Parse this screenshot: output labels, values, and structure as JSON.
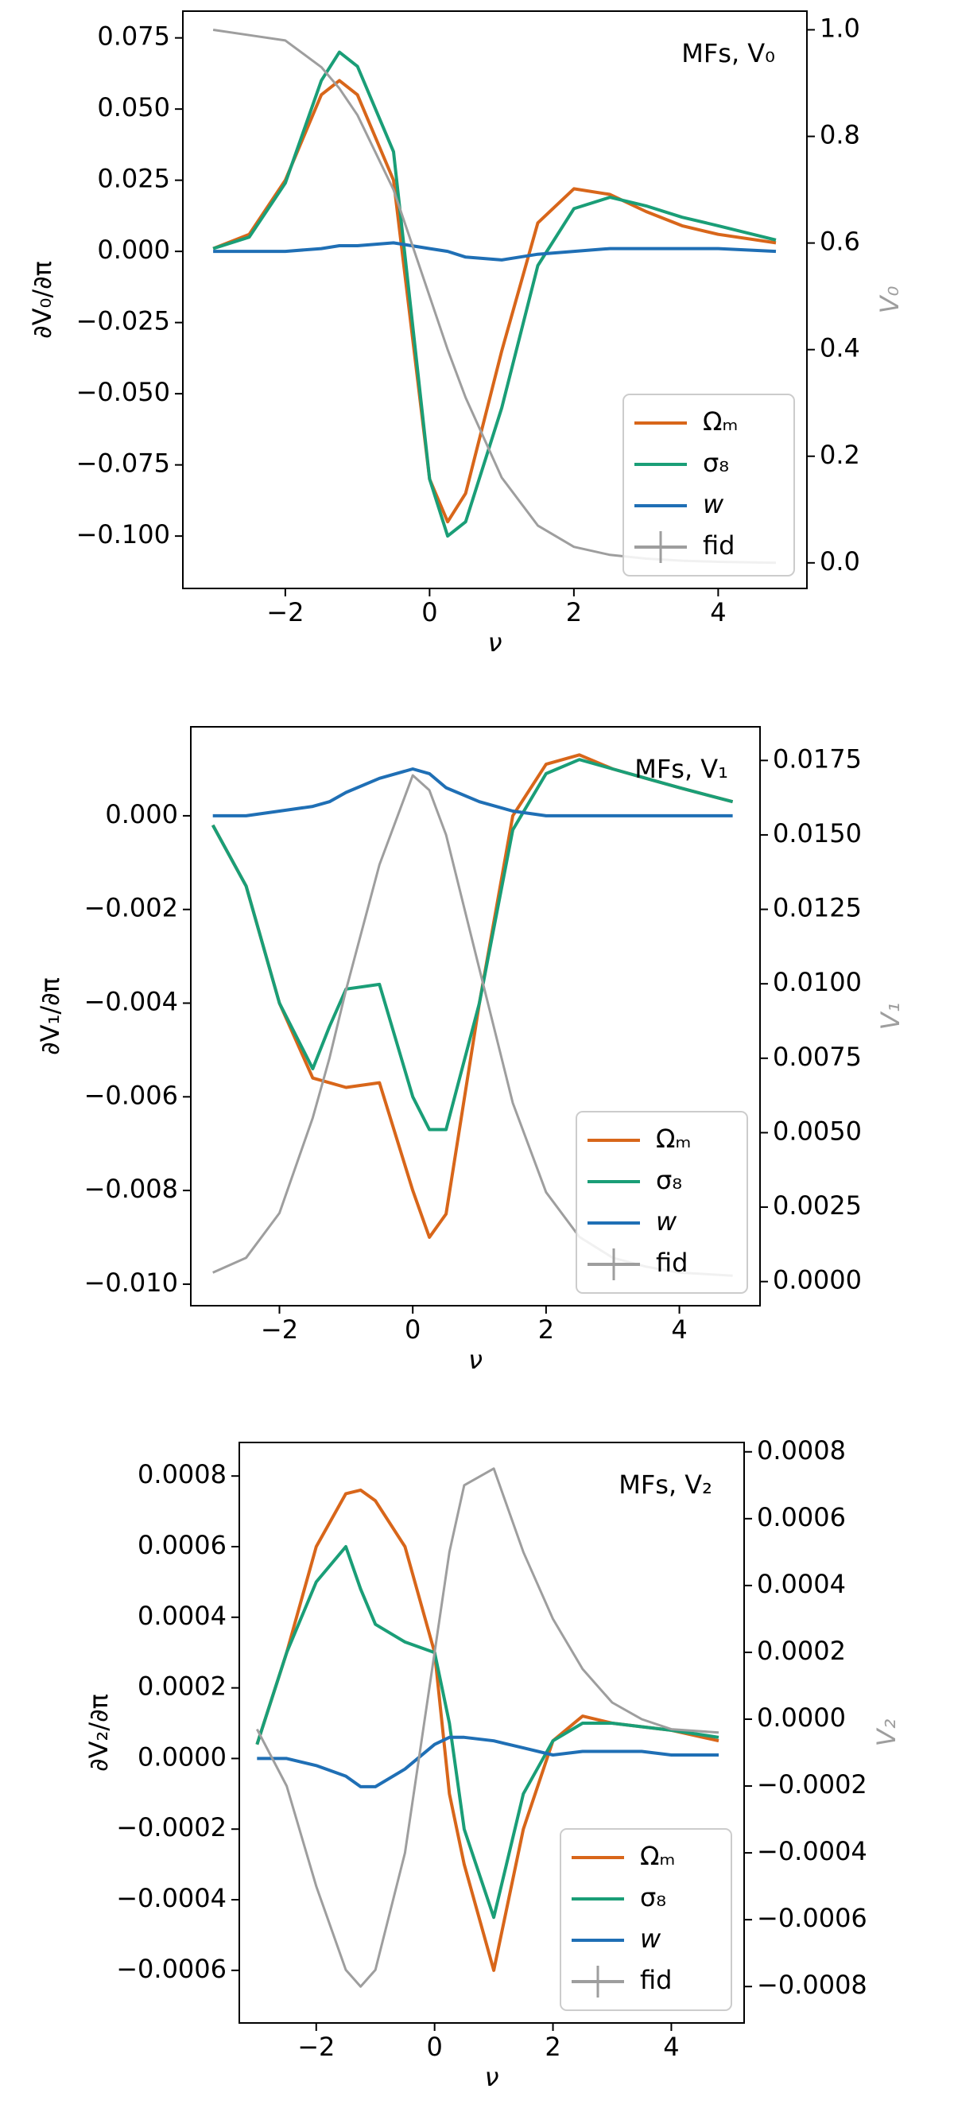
{
  "chart_data": [
    {
      "type": "line",
      "annotation": "MFs, V₀",
      "xlabel": "ν",
      "ylabel": "∂V₀/∂π",
      "y2label": "V₀",
      "legend": "lower right",
      "x": [
        -3,
        -2.5,
        -2,
        -1.5,
        -1.25,
        -1,
        -0.5,
        0,
        0.25,
        0.5,
        1,
        1.5,
        2,
        2.5,
        3,
        3.5,
        4,
        4.8
      ],
      "series": [
        {
          "name": "Ωₘ",
          "color": "#d8661a",
          "values": [
            0.001,
            0.006,
            0.025,
            0.055,
            0.06,
            0.055,
            0.025,
            -0.08,
            -0.095,
            -0.085,
            -0.035,
            0.01,
            0.022,
            0.02,
            0.014,
            0.009,
            0.006,
            0.003
          ]
        },
        {
          "name": "σ₈",
          "color": "#1a9e77",
          "values": [
            0.001,
            0.005,
            0.024,
            0.06,
            0.07,
            0.065,
            0.035,
            -0.08,
            -0.1,
            -0.095,
            -0.055,
            -0.005,
            0.015,
            0.019,
            0.016,
            0.012,
            0.009,
            0.004
          ]
        },
        {
          "name": "w",
          "color": "#1f6fb5",
          "values": [
            0,
            0,
            0,
            0.001,
            0.002,
            0.002,
            0.003,
            0.001,
            0,
            -0.002,
            -0.003,
            -0.001,
            0,
            0.001,
            0.001,
            0.001,
            0.001,
            0
          ]
        },
        {
          "name": "fid",
          "color": "#9e9e9e",
          "axis": "y2",
          "values": [
            1.0,
            0.99,
            0.98,
            0.93,
            0.89,
            0.84,
            0.7,
            0.5,
            0.4,
            0.31,
            0.16,
            0.07,
            0.03,
            0.015,
            0.008,
            0.004,
            0.002,
            0.0
          ]
        }
      ],
      "xlim": [
        -3.42,
        5.23
      ],
      "xticks": [
        {
          "value": -2,
          "label": "−2"
        },
        0,
        2,
        4
      ],
      "ylim": [
        -0.1184,
        0.0844
      ],
      "yticks": [
        {
          "value": -0.1,
          "label": "−0.100"
        },
        {
          "value": -0.075,
          "label": "−0.075"
        },
        {
          "value": -0.05,
          "label": "−0.050"
        },
        {
          "value": -0.025,
          "label": "−0.025"
        },
        {
          "value": 0,
          "label": "0.000"
        },
        {
          "value": 0.025,
          "label": "0.025"
        },
        {
          "value": 0.05,
          "label": "0.050"
        },
        {
          "value": 0.075,
          "label": "0.075"
        }
      ],
      "y2lim": [
        -0.048,
        1.035
      ],
      "y2ticks": [
        {
          "value": 0,
          "label": "0.0"
        },
        0.2,
        0.4,
        0.6,
        0.8,
        {
          "value": 1,
          "label": "1.0"
        }
      ]
    },
    {
      "type": "line",
      "annotation": "MFs, V₁",
      "xlabel": "ν",
      "ylabel": "∂V₁/∂π",
      "y2label": "V₁",
      "legend": "lower right",
      "x": [
        -3,
        -2.5,
        -2,
        -1.5,
        -1.25,
        -1,
        -0.5,
        0,
        0.25,
        0.5,
        1,
        1.5,
        2,
        2.5,
        3,
        3.5,
        4,
        4.8
      ],
      "series": [
        {
          "name": "Ωₘ",
          "color": "#d8661a",
          "values": [
            -0.0002,
            -0.0015,
            -0.004,
            -0.0056,
            -0.0057,
            -0.0058,
            -0.0057,
            -0.008,
            -0.009,
            -0.0085,
            -0.004,
            0,
            0.0011,
            0.0013,
            0.001,
            0.0008,
            0.0006,
            0.0003
          ]
        },
        {
          "name": "σ₈",
          "color": "#1a9e77",
          "values": [
            -0.0002,
            -0.0015,
            -0.004,
            -0.0054,
            -0.0045,
            -0.0037,
            -0.0036,
            -0.006,
            -0.0067,
            -0.0067,
            -0.004,
            -0.0003,
            0.0009,
            0.0012,
            0.001,
            0.0008,
            0.0006,
            0.0003
          ]
        },
        {
          "name": "w",
          "color": "#1f6fb5",
          "values": [
            0,
            0,
            0.0001,
            0.0002,
            0.0003,
            0.0005,
            0.0008,
            0.001,
            0.0009,
            0.0006,
            0.0003,
            0.0001,
            0,
            0,
            0,
            0,
            0,
            0
          ]
        },
        {
          "name": "fid",
          "color": "#9e9e9e",
          "axis": "y2",
          "values": [
            0.0003,
            0.0008,
            0.0023,
            0.0055,
            0.0075,
            0.0098,
            0.014,
            0.017,
            0.0165,
            0.015,
            0.0105,
            0.006,
            0.003,
            0.0015,
            0.0008,
            0.0005,
            0.0003,
            0.0002
          ]
        }
      ],
      "xlim": [
        -3.33,
        5.21
      ],
      "xticks": [
        {
          "value": -2,
          "label": "−2"
        },
        0,
        2,
        4
      ],
      "ylim": [
        -0.01046,
        0.0019
      ],
      "yticks": [
        {
          "value": -0.01,
          "label": "−0.010"
        },
        {
          "value": -0.008,
          "label": "−0.008"
        },
        {
          "value": -0.006,
          "label": "−0.006"
        },
        {
          "value": -0.004,
          "label": "−0.004"
        },
        {
          "value": -0.002,
          "label": "−0.002"
        },
        {
          "value": 0,
          "label": "0.000"
        }
      ],
      "y2lim": [
        -0.00081,
        0.01863
      ],
      "y2ticks": [
        {
          "value": 0,
          "label": "0.0000"
        },
        {
          "value": 0.0025,
          "label": "0.0025"
        },
        {
          "value": 0.005,
          "label": "0.0050"
        },
        {
          "value": 0.0075,
          "label": "0.0075"
        },
        {
          "value": 0.01,
          "label": "0.0100"
        },
        {
          "value": 0.0125,
          "label": "0.0125"
        },
        {
          "value": 0.015,
          "label": "0.0150"
        },
        {
          "value": 0.0175,
          "label": "0.0175"
        }
      ]
    },
    {
      "type": "line",
      "annotation": "MFs, V₂",
      "xlabel": "ν",
      "ylabel": "∂V₂/∂π",
      "y2label": "V₂",
      "legend": "lower right",
      "x": [
        -3,
        -2.5,
        -2,
        -1.5,
        -1.25,
        -1,
        -0.5,
        0,
        0.25,
        0.5,
        1,
        1.5,
        2,
        2.5,
        3,
        3.5,
        4,
        4.8
      ],
      "series": [
        {
          "name": "Ωₘ",
          "color": "#d8661a",
          "values": [
            4e-05,
            0.0003,
            0.0006,
            0.00075,
            0.00076,
            0.00073,
            0.0006,
            0.0003,
            -0.0001,
            -0.0003,
            -0.0006,
            -0.0002,
            5e-05,
            0.00012,
            0.0001,
            9e-05,
            8e-05,
            5e-05
          ]
        },
        {
          "name": "σ₈",
          "color": "#1a9e77",
          "values": [
            4e-05,
            0.0003,
            0.0005,
            0.0006,
            0.00048,
            0.00038,
            0.00033,
            0.0003,
            0.0001,
            -0.0002,
            -0.00045,
            -0.0001,
            5e-05,
            0.0001,
            0.0001,
            9e-05,
            8e-05,
            6e-05
          ]
        },
        {
          "name": "w",
          "color": "#1f6fb5",
          "values": [
            0,
            0,
            -2e-05,
            -5e-05,
            -8e-05,
            -8e-05,
            -3e-05,
            4e-05,
            6e-05,
            6e-05,
            5e-05,
            3e-05,
            1e-05,
            2e-05,
            2e-05,
            2e-05,
            1e-05,
            1e-05
          ]
        },
        {
          "name": "fid",
          "color": "#9e9e9e",
          "axis": "y2",
          "values": [
            -3e-05,
            -0.0002,
            -0.0005,
            -0.00075,
            -0.0008,
            -0.00075,
            -0.0004,
            0.0002,
            0.0005,
            0.0007,
            0.00075,
            0.0005,
            0.0003,
            0.00015,
            5e-05,
            0,
            -3e-05,
            -4e-05
          ]
        }
      ],
      "xlim": [
        -3.3,
        5.23
      ],
      "xticks": [
        {
          "value": -2,
          "label": "−2"
        },
        0,
        2,
        4
      ],
      "ylim": [
        -0.000749,
        0.000895
      ],
      "yticks": [
        {
          "value": -0.0006,
          "label": "−0.0006"
        },
        {
          "value": -0.0004,
          "label": "−0.0004"
        },
        {
          "value": -0.0002,
          "label": "−0.0002"
        },
        {
          "value": 0,
          "label": "0.0000"
        },
        {
          "value": 0.0002,
          "label": "0.0002"
        },
        {
          "value": 0.0004,
          "label": "0.0004"
        },
        {
          "value": 0.0006,
          "label": "0.0006"
        },
        {
          "value": 0.0008,
          "label": "0.0008"
        }
      ],
      "y2lim": [
        -0.000909,
        0.000828
      ],
      "y2ticks": [
        {
          "value": -0.0008,
          "label": "−0.0008"
        },
        {
          "value": -0.0006,
          "label": "−0.0006"
        },
        {
          "value": -0.0004,
          "label": "−0.0004"
        },
        {
          "value": -0.0002,
          "label": "−0.0002"
        },
        {
          "value": 0,
          "label": "0.0000"
        },
        {
          "value": 0.0002,
          "label": "0.0002"
        },
        {
          "value": 0.0004,
          "label": "0.0004"
        },
        {
          "value": 0.0006,
          "label": "0.0006"
        },
        {
          "value": 0.0008,
          "label": "0.0008"
        }
      ]
    }
  ]
}
